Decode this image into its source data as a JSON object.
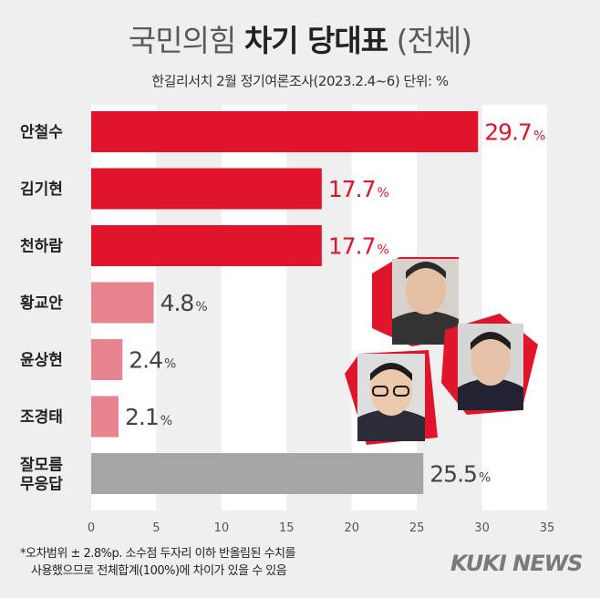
{
  "title": {
    "light_prefix": "국민의힘",
    "bold": "차기 당대표",
    "light_suffix": "(전체)"
  },
  "subtitle": "한길리서치 2월 정기여론조사(2023.2.4~6) 단위: %",
  "footnote": {
    "line1": "*오차범위 ± 2.8%p. 소수점 두자리 이하 반올림된 수치를",
    "line2": "사용했으므로 전체합계(100%)에 차이가 있을 수 있음"
  },
  "logo": "KUKI NEWS",
  "colors": {
    "strong": "#e0142b",
    "light": "#e8848f",
    "gray": "#a6a6a6",
    "label_red": "#e0142b",
    "label_gray": "#444444"
  },
  "chart_data": {
    "type": "bar",
    "orientation": "horizontal",
    "categories": [
      "안철수",
      "김기현",
      "천하람",
      "황교안",
      "윤상현",
      "조경태",
      "잘모름\n무응답"
    ],
    "values": [
      29.7,
      17.7,
      17.7,
      4.8,
      2.4,
      2.1,
      25.5
    ],
    "value_labels": [
      "29.7",
      "17.7",
      "17.7",
      "4.8",
      "2.4",
      "2.1",
      "25.5"
    ],
    "value_unit": "%",
    "bar_styles": [
      "strong",
      "strong",
      "strong",
      "light",
      "light",
      "light",
      "gray"
    ],
    "xlim": [
      0,
      35
    ],
    "xticks": [
      0,
      5,
      10,
      15,
      20,
      25,
      30,
      35
    ],
    "grid": "vertical-bands"
  },
  "photos": [
    {
      "name": "ahn-cheol-soo-photo"
    },
    {
      "name": "kim-gi-hyeon-photo"
    },
    {
      "name": "cheon-ha-ram-photo"
    }
  ]
}
